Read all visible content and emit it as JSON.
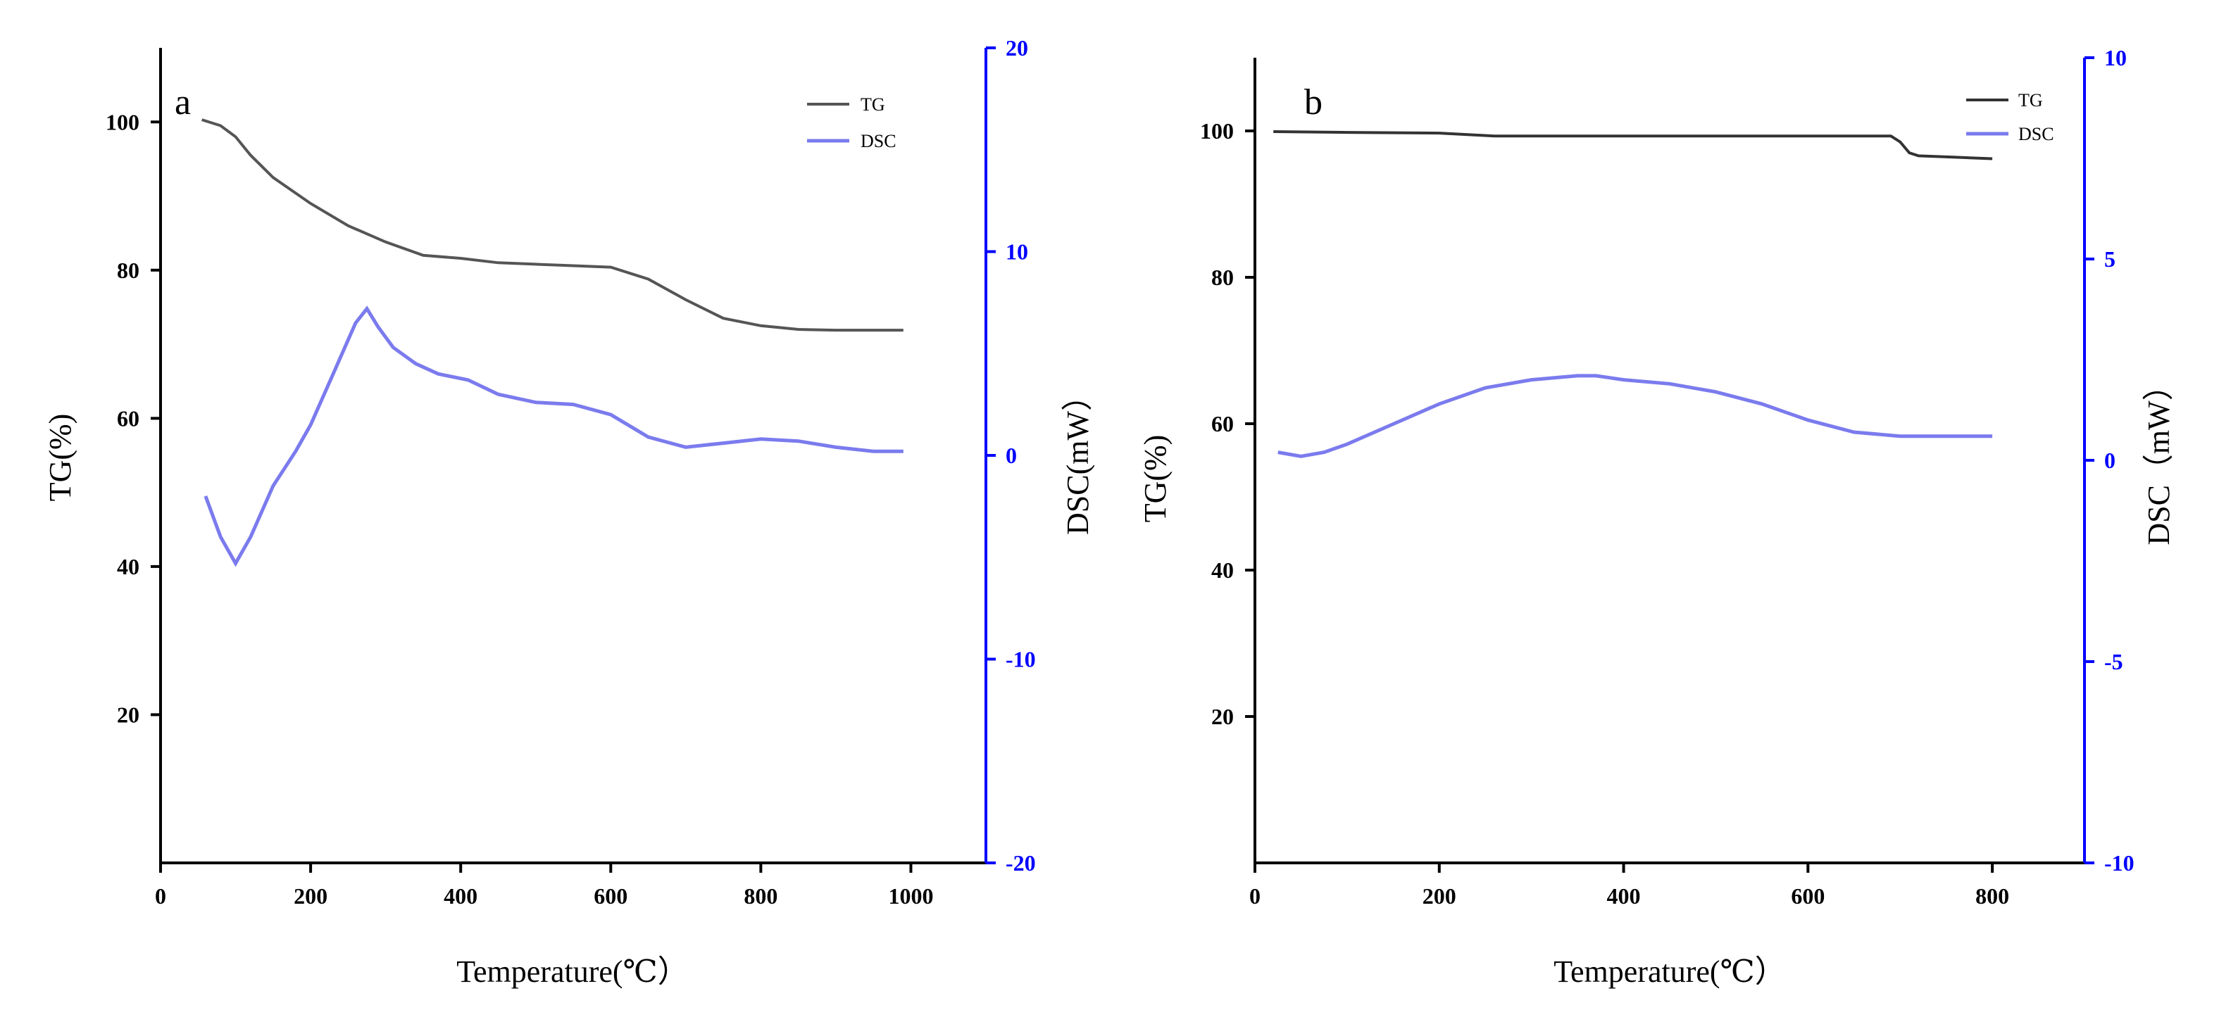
{
  "chart_data": [
    {
      "id": "a",
      "type": "line",
      "panel_label": "a",
      "xlabel": "Temperature(℃）",
      "ylabel_left": "TG(%)",
      "ylabel_right": "DSC(mW）",
      "xlim": [
        0,
        1100
      ],
      "ylim_left": [
        0,
        110
      ],
      "ylim_right": [
        -20,
        20
      ],
      "xticks": [
        0,
        200,
        400,
        600,
        800,
        1000
      ],
      "yticks_left": [
        20,
        40,
        60,
        80,
        100
      ],
      "yticks_right": [
        -20,
        -10,
        0,
        10,
        20
      ],
      "legend": [
        "TG",
        "DSC"
      ],
      "series": [
        {
          "name": "TG",
          "axis": "left",
          "color": "#555555",
          "x": [
            55,
            80,
            100,
            120,
            150,
            200,
            250,
            300,
            350,
            400,
            450,
            500,
            550,
            600,
            650,
            700,
            750,
            800,
            850,
            900,
            950,
            990
          ],
          "y": [
            100.3,
            99.5,
            98.0,
            95.5,
            92.5,
            89.0,
            86.0,
            83.8,
            82.0,
            81.6,
            81.0,
            80.8,
            80.6,
            80.4,
            78.8,
            76.0,
            73.5,
            72.5,
            72.0,
            71.9,
            71.9,
            71.9
          ]
        },
        {
          "name": "DSC",
          "axis": "right",
          "color": "#7b7bee",
          "x": [
            60,
            80,
            100,
            120,
            150,
            180,
            200,
            230,
            260,
            275,
            290,
            310,
            340,
            370,
            410,
            450,
            500,
            550,
            600,
            650,
            700,
            750,
            800,
            850,
            900,
            950,
            990
          ],
          "y": [
            -2.0,
            -4.0,
            -5.3,
            -4.0,
            -1.5,
            0.2,
            1.5,
            4.0,
            6.5,
            7.2,
            6.3,
            5.3,
            4.5,
            4.0,
            3.7,
            3.0,
            2.6,
            2.5,
            2.0,
            0.9,
            0.4,
            0.6,
            0.8,
            0.7,
            0.4,
            0.2,
            0.2
          ]
        }
      ]
    },
    {
      "id": "b",
      "type": "line",
      "panel_label": "b",
      "xlabel": "Temperature(℃）",
      "ylabel_left": "TG(%)",
      "ylabel_right": "DSC（mW）",
      "xlim": [
        0,
        900
      ],
      "ylim_left": [
        0,
        110
      ],
      "ylim_right": [
        -10,
        10
      ],
      "xticks": [
        0,
        200,
        400,
        600,
        800
      ],
      "yticks_left": [
        20,
        40,
        60,
        80,
        100
      ],
      "yticks_right": [
        -10,
        -5,
        0,
        5,
        10
      ],
      "legend": [
        "TG",
        "DSC"
      ],
      "series": [
        {
          "name": "TG",
          "axis": "left",
          "color": "#333333",
          "x": [
            20,
            100,
            200,
            260,
            300,
            400,
            500,
            600,
            690,
            700,
            710,
            720,
            760,
            800
          ],
          "y": [
            99.9,
            99.8,
            99.7,
            99.3,
            99.3,
            99.3,
            99.3,
            99.3,
            99.3,
            98.5,
            97.0,
            96.6,
            96.4,
            96.2
          ]
        },
        {
          "name": "DSC",
          "axis": "right",
          "color": "#7b7bee",
          "x": [
            25,
            50,
            75,
            100,
            150,
            200,
            250,
            300,
            350,
            370,
            400,
            450,
            500,
            550,
            600,
            650,
            700,
            750,
            800
          ],
          "y": [
            0.2,
            0.1,
            0.2,
            0.4,
            0.9,
            1.4,
            1.8,
            2.0,
            2.1,
            2.1,
            2.0,
            1.9,
            1.7,
            1.4,
            1.0,
            0.7,
            0.6,
            0.6,
            0.6
          ]
        }
      ]
    }
  ]
}
